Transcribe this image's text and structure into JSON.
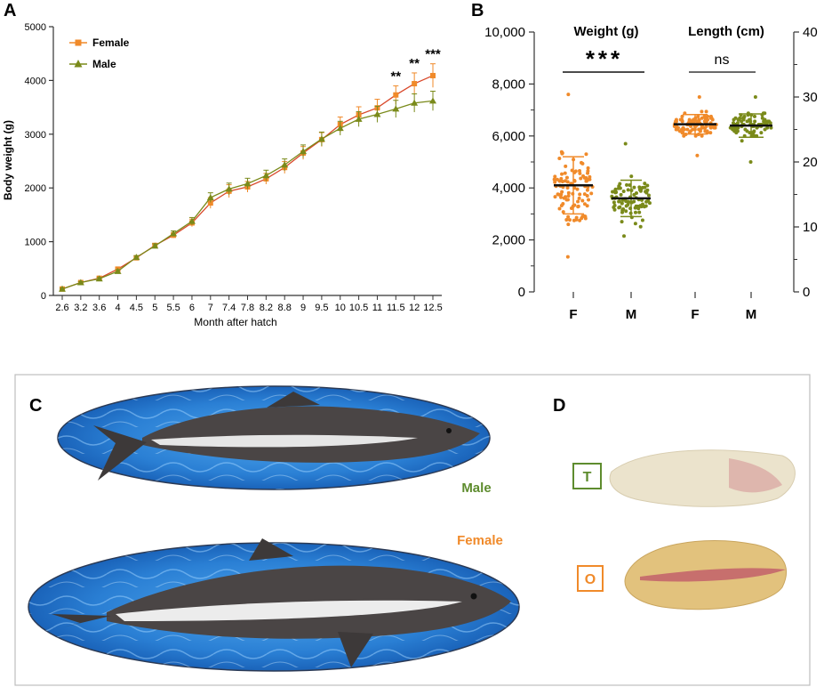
{
  "panel_labels": {
    "a": "A",
    "b": "B",
    "c": "C",
    "d": "D"
  },
  "colors": {
    "female": "#F08A2A",
    "male": "#7A8A1A",
    "male_label": "#5E8C2E",
    "female_label": "#F08A2A",
    "axis": "#333333"
  },
  "chart_data": [
    {
      "type": "line",
      "title": "",
      "xlabel": "Month after hatch",
      "ylabel": "Body weight (g)",
      "ylim": [
        0,
        5000
      ],
      "yticks": [
        "0",
        "1000",
        "2000",
        "3000",
        "4000",
        "5000"
      ],
      "categories": [
        "2.6",
        "3.2",
        "3.6",
        "4",
        "4.5",
        "5",
        "5.5",
        "6",
        "7",
        "7.4",
        "7.8",
        "8.2",
        "8.8",
        "9",
        "9.5",
        "10",
        "10.5",
        "11",
        "11.5",
        "12",
        "12.5"
      ],
      "legend_position": "top-left",
      "series": [
        {
          "name": "Female",
          "marker": "square",
          "values": [
            120,
            240,
            320,
            490,
            700,
            930,
            1120,
            1350,
            1720,
            1940,
            2020,
            2170,
            2380,
            2650,
            2900,
            3180,
            3360,
            3490,
            3730,
            3940,
            4090
          ],
          "errors": [
            15,
            20,
            25,
            35,
            30,
            40,
            50,
            70,
            100,
            120,
            100,
            100,
            110,
            120,
            130,
            140,
            150,
            160,
            170,
            200,
            220
          ]
        },
        {
          "name": "Male",
          "marker": "triangle",
          "values": [
            120,
            240,
            310,
            450,
            710,
            920,
            1150,
            1380,
            1820,
            1980,
            2080,
            2230,
            2430,
            2680,
            2910,
            3110,
            3280,
            3370,
            3470,
            3580,
            3620
          ],
          "errors": [
            15,
            20,
            25,
            30,
            30,
            40,
            50,
            70,
            90,
            110,
            100,
            100,
            110,
            120,
            130,
            130,
            140,
            150,
            160,
            170,
            180
          ]
        }
      ],
      "significance": [
        {
          "category": "11.5",
          "label": "**"
        },
        {
          "category": "12",
          "label": "**"
        },
        {
          "category": "12.5",
          "label": "***"
        }
      ]
    },
    {
      "type": "scatter",
      "title": "",
      "categories": [
        "F",
        "M",
        "F",
        "M"
      ],
      "groups": [
        {
          "name": "Weight (g)",
          "axis": "left",
          "ylim": [
            0,
            10000
          ],
          "yticks": [
            "0",
            "2,000",
            "4,000",
            "6,000",
            "8,000",
            "10,000"
          ],
          "female": {
            "mean": 4100,
            "sd": 1100,
            "min": 1350,
            "max": 7600
          },
          "male": {
            "mean": 3600,
            "sd": 700,
            "min": 2150,
            "max": 5700
          },
          "significance": "***"
        },
        {
          "name": "Length (cm)",
          "axis": "right",
          "ylim": [
            0,
            40
          ],
          "yticks": [
            "0",
            "10",
            "20",
            "30",
            "40"
          ],
          "female": {
            "mean": 25.8,
            "sd": 1.5,
            "min": 21,
            "max": 30
          },
          "male": {
            "mean": 25.6,
            "sd": 1.8,
            "min": 20,
            "max": 30
          },
          "significance": "ns"
        }
      ]
    }
  ],
  "panel_c": {
    "male_label": "Male",
    "female_label": "Female"
  },
  "panel_d": {
    "testis_label": "T",
    "ovary_label": "O"
  }
}
